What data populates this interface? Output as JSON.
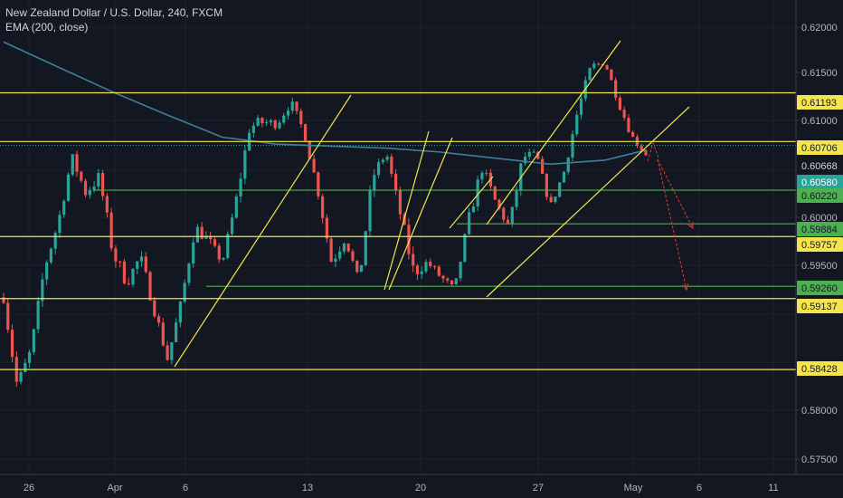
{
  "symbol_title": "New Zealand Dollar / U.S. Dollar, 240, FXCM",
  "indicator_label": "EMA (200, close)",
  "colors": {
    "background": "#131722",
    "grid": "#1e2230",
    "axis_text": "#b2b5be",
    "axis_line": "#363a45",
    "candle_up": "#26a69a",
    "candle_down": "#ef5350",
    "ema": "#3f7f9a",
    "yellow_line": "#f5e54a",
    "green_line": "#4caf50",
    "arrow_red": "#e53935",
    "current_price_bg": "#26a69a"
  },
  "price_axis": {
    "ticks": [
      "0.62000",
      "0.61500",
      "0.61000",
      "0.60000",
      "0.59500",
      "0.58000",
      "0.57500"
    ],
    "ylim": [
      0.5738,
      0.6212
    ]
  },
  "price_tags": [
    {
      "label": "0.61193",
      "kind": "yellow"
    },
    {
      "label": "0.60706",
      "kind": "yellow"
    },
    {
      "label": "0.60668",
      "kind": "dotted"
    },
    {
      "label": "0.60580",
      "kind": "current"
    },
    {
      "label": "0.60220",
      "kind": "green"
    },
    {
      "label": "0.59884",
      "kind": "green"
    },
    {
      "label": "0.59757",
      "kind": "yellow"
    },
    {
      "label": "0.59260",
      "kind": "green"
    },
    {
      "label": "0.59137",
      "kind": "yellow"
    },
    {
      "label": "0.58428",
      "kind": "yellow"
    }
  ],
  "time_axis": {
    "labels": [
      "26",
      "Apr",
      "6",
      "13",
      "20",
      "27",
      "May",
      "6",
      "11"
    ]
  },
  "chart_data": {
    "type": "candlestick",
    "title": "New Zealand Dollar / U.S. Dollar, 240, FXCM",
    "indicator": "EMA (200, close)",
    "ylim": [
      0.5738,
      0.6212
    ],
    "x_tick_labels": [
      "26",
      "Apr",
      "6",
      "13",
      "20",
      "27",
      "May",
      "6",
      "11"
    ],
    "y_tick_labels": [
      "0.62000",
      "0.61500",
      "0.61000",
      "0.60000",
      "0.59500",
      "0.58000",
      "0.57500"
    ],
    "current_price": 0.6058,
    "horizontal_levels": [
      {
        "price": 0.61193,
        "color": "yellow"
      },
      {
        "price": 0.60706,
        "color": "yellow"
      },
      {
        "price": 0.60668,
        "color": "dotted"
      },
      {
        "price": 0.6022,
        "color": "green"
      },
      {
        "price": 0.59884,
        "color": "green"
      },
      {
        "price": 0.59757,
        "color": "yellow"
      },
      {
        "price": 0.5926,
        "color": "green"
      },
      {
        "price": 0.59137,
        "color": "yellow"
      },
      {
        "price": 0.58428,
        "color": "yellow"
      }
    ],
    "price_path": [
      [
        0,
        0.5915,
        8
      ],
      [
        1,
        0.5825,
        14
      ],
      [
        2,
        0.5862,
        8
      ],
      [
        3,
        0.5945,
        12
      ],
      [
        4,
        0.599,
        10
      ],
      [
        5,
        0.6055,
        8
      ],
      [
        6,
        0.602,
        10
      ],
      [
        7,
        0.6035,
        10
      ],
      [
        8,
        0.596,
        14
      ],
      [
        9,
        0.593,
        10
      ],
      [
        10,
        0.5955,
        10
      ],
      [
        11,
        0.5905,
        10
      ],
      [
        12,
        0.5853,
        8
      ],
      [
        13,
        0.591,
        8
      ],
      [
        14,
        0.5985,
        10
      ],
      [
        15,
        0.5972,
        8
      ],
      [
        16,
        0.595,
        6
      ],
      [
        17,
        0.601,
        10
      ],
      [
        18,
        0.6085,
        10
      ],
      [
        19,
        0.609,
        10
      ],
      [
        20,
        0.6088,
        6
      ],
      [
        21,
        0.611,
        8
      ],
      [
        22,
        0.608,
        6
      ],
      [
        23,
        0.6022,
        8
      ],
      [
        24,
        0.595,
        10
      ],
      [
        25,
        0.5975,
        8
      ],
      [
        26,
        0.593,
        6
      ],
      [
        27,
        0.6035,
        12
      ],
      [
        28,
        0.606,
        6
      ],
      [
        29,
        0.6,
        10
      ],
      [
        30,
        0.594,
        14
      ],
      [
        31,
        0.595,
        6
      ],
      [
        32,
        0.5935,
        8
      ],
      [
        33,
        0.5922,
        6
      ],
      [
        34,
        0.599,
        10
      ],
      [
        35,
        0.6045,
        10
      ],
      [
        36,
        0.601,
        8
      ],
      [
        37,
        0.5985,
        8
      ],
      [
        38,
        0.6055,
        10
      ],
      [
        39,
        0.6058,
        4
      ],
      [
        40,
        0.6005,
        6
      ],
      [
        41,
        0.604,
        6
      ],
      [
        42,
        0.61,
        10
      ],
      [
        43,
        0.6145,
        8
      ],
      [
        44,
        0.615,
        4
      ],
      [
        45,
        0.611,
        6
      ],
      [
        46,
        0.6075,
        6
      ],
      [
        47,
        0.6058,
        4
      ]
    ],
    "ema_path": [
      [
        0,
        0.617
      ],
      [
        4,
        0.6145
      ],
      [
        8,
        0.612
      ],
      [
        12,
        0.6097
      ],
      [
        16,
        0.6075
      ],
      [
        20,
        0.6068
      ],
      [
        24,
        0.6066
      ],
      [
        28,
        0.6064
      ],
      [
        32,
        0.606
      ],
      [
        36,
        0.6054
      ],
      [
        40,
        0.6048
      ],
      [
        44,
        0.6052
      ],
      [
        47,
        0.6062
      ]
    ]
  }
}
